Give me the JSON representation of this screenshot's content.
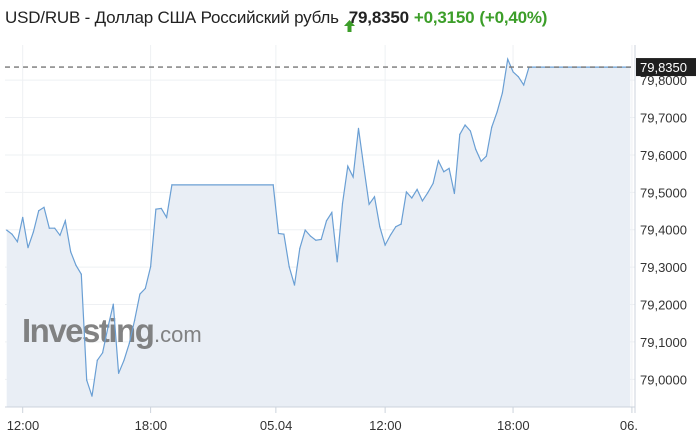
{
  "header": {
    "title": "USD/RUB - Доллар США Российский рубль",
    "direction_icon": "arrow-up-icon",
    "price": "79,8350",
    "change": "+0,3150",
    "change_percent": "(+0,40%)",
    "colors": {
      "up": "#3c9e29",
      "line": "#6a9fd4",
      "fill": "#e9eef5",
      "price_tag": "#1f1f1f"
    }
  },
  "watermark": {
    "brand": "Investing",
    "suffix": ".com"
  },
  "chart_data": {
    "type": "area",
    "title": "",
    "xlabel": "",
    "ylabel": "",
    "ylim": [
      78.926,
      79.894
    ],
    "grid": true,
    "current_value": 79.835,
    "current_value_label": "79,8350",
    "y_ticks": [
      {
        "value": 79.0,
        "label": "79,0000"
      },
      {
        "value": 79.1,
        "label": "79,1000"
      },
      {
        "value": 79.2,
        "label": "79,2000"
      },
      {
        "value": 79.3,
        "label": "79,3000"
      },
      {
        "value": 79.4,
        "label": "79,4000"
      },
      {
        "value": 79.5,
        "label": "79,5000"
      },
      {
        "value": 79.6,
        "label": "79,6000"
      },
      {
        "value": 79.7,
        "label": "79,7000"
      },
      {
        "value": 79.8,
        "label": "79,8000"
      }
    ],
    "x_ticks": [
      {
        "time": "04.04 12:00",
        "label": "12:00"
      },
      {
        "time": "04.04 18:00",
        "label": "18:00"
      },
      {
        "time": "05.04 00:00",
        "label": "05.04"
      },
      {
        "time": "05.04 12:00",
        "label": "12:00"
      },
      {
        "time": "05.04 18:00",
        "label": "18:00"
      },
      {
        "time": "06.04 00:00",
        "label": "06."
      }
    ],
    "points": [
      [
        "04.04 11:15",
        79.399
      ],
      [
        "04.04 11:30",
        79.388
      ],
      [
        "04.04 11:45",
        79.368
      ],
      [
        "04.04 12:00",
        79.433
      ],
      [
        "04.04 12:15",
        79.352
      ],
      [
        "04.04 12:30",
        79.394
      ],
      [
        "04.04 12:45",
        79.451
      ],
      [
        "04.04 13:00",
        79.46
      ],
      [
        "04.04 13:15",
        79.404
      ],
      [
        "04.04 13:30",
        79.404
      ],
      [
        "04.04 13:45",
        79.385
      ],
      [
        "04.04 14:00",
        79.424
      ],
      [
        "04.04 14:15",
        79.341
      ],
      [
        "04.04 14:30",
        79.305
      ],
      [
        "04.04 14:45",
        79.281
      ],
      [
        "04.04 15:00",
        78.998
      ],
      [
        "04.04 15:15",
        78.955
      ],
      [
        "04.04 15:30",
        79.051
      ],
      [
        "04.04 15:45",
        79.071
      ],
      [
        "04.04 16:00",
        79.14
      ],
      [
        "04.04 16:15",
        79.201
      ],
      [
        "04.04 16:30",
        79.016
      ],
      [
        "04.04 16:45",
        79.051
      ],
      [
        "04.04 17:00",
        79.096
      ],
      [
        "04.04 17:15",
        79.158
      ],
      [
        "04.04 17:30",
        79.228
      ],
      [
        "04.04 17:45",
        79.243
      ],
      [
        "04.04 18:00",
        79.301
      ],
      [
        "04.04 18:15",
        79.455
      ],
      [
        "04.04 18:30",
        79.457
      ],
      [
        "04.04 18:45",
        79.433
      ],
      [
        "04.04 19:00",
        79.52
      ],
      [
        "04.04 23:45",
        79.52
      ],
      [
        "05.04 07:00",
        79.39
      ],
      [
        "05.04 07:15",
        79.388
      ],
      [
        "05.04 07:30",
        79.301
      ],
      [
        "05.04 07:45",
        79.252
      ],
      [
        "05.04 08:00",
        79.35
      ],
      [
        "05.04 08:15",
        79.399
      ],
      [
        "05.04 08:30",
        79.383
      ],
      [
        "05.04 08:45",
        79.372
      ],
      [
        "05.04 09:00",
        79.374
      ],
      [
        "05.04 09:15",
        79.424
      ],
      [
        "05.04 09:30",
        79.446
      ],
      [
        "05.04 09:45",
        79.314
      ],
      [
        "05.04 10:00",
        79.47
      ],
      [
        "05.04 10:15",
        79.57
      ],
      [
        "05.04 10:30",
        79.541
      ],
      [
        "05.04 10:45",
        79.671
      ],
      [
        "05.04 11:00",
        79.568
      ],
      [
        "05.04 11:15",
        79.468
      ],
      [
        "05.04 11:30",
        79.488
      ],
      [
        "05.04 11:45",
        79.408
      ],
      [
        "05.04 12:00",
        79.359
      ],
      [
        "05.04 12:15",
        79.386
      ],
      [
        "05.04 12:30",
        79.408
      ],
      [
        "05.04 12:45",
        79.415
      ],
      [
        "05.04 13:00",
        79.501
      ],
      [
        "05.04 13:15",
        79.485
      ],
      [
        "05.04 13:30",
        79.508
      ],
      [
        "05.04 13:45",
        79.477
      ],
      [
        "05.04 14:00",
        79.499
      ],
      [
        "05.04 14:15",
        79.524
      ],
      [
        "05.04 14:30",
        79.584
      ],
      [
        "05.04 14:45",
        79.555
      ],
      [
        "05.04 15:00",
        79.564
      ],
      [
        "05.04 15:15",
        79.497
      ],
      [
        "05.04 15:30",
        79.655
      ],
      [
        "05.04 15:45",
        79.68
      ],
      [
        "05.04 16:00",
        79.664
      ],
      [
        "05.04 16:15",
        79.615
      ],
      [
        "05.04 16:30",
        79.583
      ],
      [
        "05.04 16:45",
        79.597
      ],
      [
        "05.04 17:00",
        79.674
      ],
      [
        "05.04 17:15",
        79.715
      ],
      [
        "05.04 17:30",
        79.766
      ],
      [
        "05.04 17:45",
        79.856
      ],
      [
        "05.04 18:00",
        79.822
      ],
      [
        "05.04 18:15",
        79.809
      ],
      [
        "05.04 18:30",
        79.787
      ],
      [
        "05.04 18:45",
        79.835
      ],
      [
        "05.04 23:30",
        79.835
      ]
    ]
  }
}
